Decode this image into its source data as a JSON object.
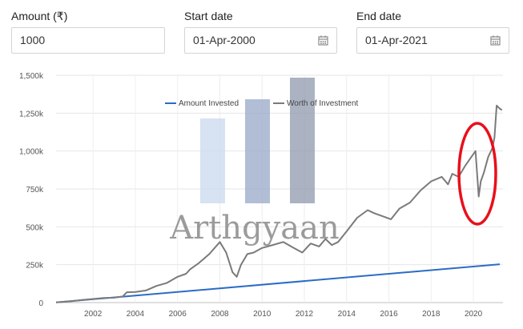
{
  "form": {
    "amount": {
      "label": "Amount (₹)",
      "value": "1000"
    },
    "start_date": {
      "label": "Start date",
      "value": "01-Apr-2000",
      "icon": "calendar-icon"
    },
    "end_date": {
      "label": "End date",
      "value": "01-Apr-2021",
      "icon": "calendar-icon"
    }
  },
  "watermark": {
    "text": "Arthgyaan"
  },
  "colors": {
    "amount_invested": "#2b6cc4",
    "worth_of_investment": "#7a7a7a",
    "highlight_ellipse": "#e8101a"
  },
  "chart_data": {
    "type": "line",
    "x_ticks": [
      "2002",
      "2004",
      "2006",
      "2008",
      "2010",
      "2012",
      "2014",
      "2016",
      "2018",
      "2020"
    ],
    "y_ticks": [
      "0",
      "250k",
      "500k",
      "750k",
      "1,000k",
      "1,250k",
      "1,500k"
    ],
    "xlim": [
      2000.25,
      2021.4
    ],
    "ylim": [
      0,
      1500000
    ],
    "legend_position": "top-center",
    "grid": true,
    "series": [
      {
        "name": "Amount Invested",
        "x": [
          2000.25,
          2021.25
        ],
        "values": [
          1000,
          253000
        ]
      },
      {
        "name": "Worth of Investment",
        "x": [
          2000.25,
          2001,
          2001.5,
          2002,
          2002.5,
          2003,
          2003.4,
          2003.6,
          2004,
          2004.5,
          2005,
          2005.5,
          2006,
          2006.4,
          2006.6,
          2007,
          2007.5,
          2008,
          2008.3,
          2008.6,
          2008.8,
          2009,
          2009.3,
          2009.6,
          2010,
          2010.5,
          2011,
          2011.5,
          2011.9,
          2012.3,
          2012.7,
          2013,
          2013.3,
          2013.6,
          2014,
          2014.5,
          2015,
          2015.3,
          2015.7,
          2016.1,
          2016.5,
          2017,
          2017.5,
          2018,
          2018.5,
          2018.8,
          2019,
          2019.3,
          2019.6,
          2019.9,
          2020.1,
          2020.25,
          2020.35,
          2020.5,
          2020.7,
          2020.9,
          2021.0,
          2021.1,
          2021.25,
          2021.35
        ],
        "values": [
          1000,
          9000,
          18000,
          24000,
          30000,
          32000,
          40000,
          68000,
          70000,
          80000,
          110000,
          130000,
          170000,
          190000,
          220000,
          260000,
          320000,
          400000,
          330000,
          200000,
          170000,
          250000,
          320000,
          330000,
          360000,
          380000,
          400000,
          360000,
          330000,
          390000,
          370000,
          420000,
          380000,
          400000,
          470000,
          560000,
          610000,
          590000,
          570000,
          550000,
          620000,
          660000,
          740000,
          800000,
          830000,
          780000,
          850000,
          830000,
          900000,
          960000,
          1000000,
          700000,
          800000,
          860000,
          960000,
          1020000,
          1090000,
          1300000,
          1280000,
          1270000
        ]
      }
    ]
  }
}
